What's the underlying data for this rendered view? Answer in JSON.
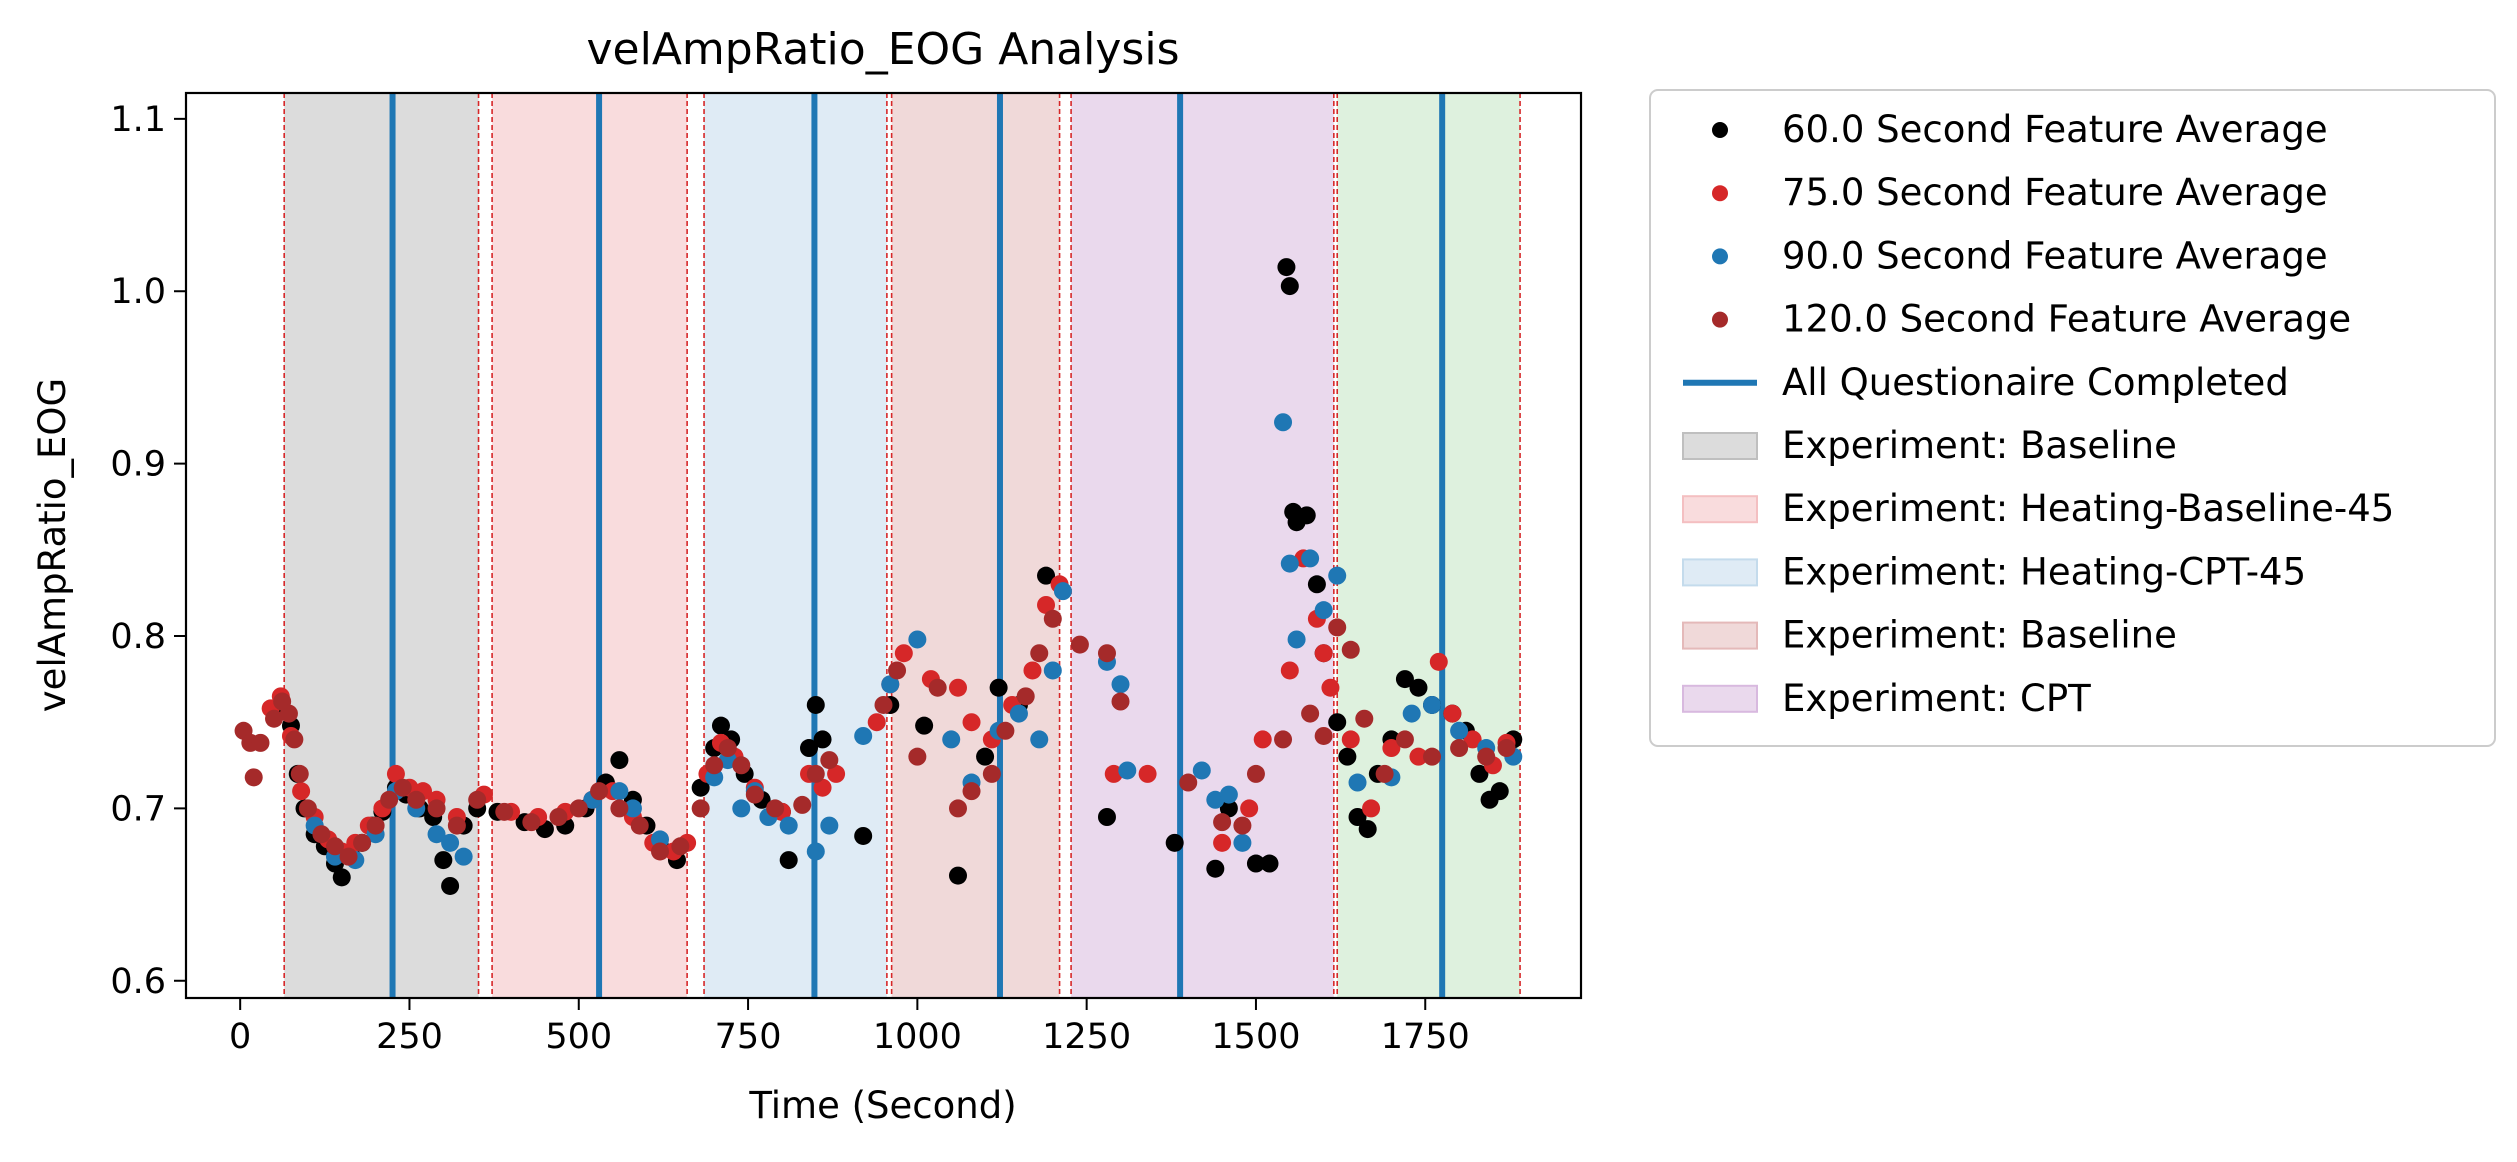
{
  "chart_data": {
    "type": "scatter",
    "title": "velAmpRatio_EOG Analysis",
    "xlabel": "Time (Second)",
    "ylabel": "velAmpRatio_EOG",
    "xlim": [
      -80,
      1980
    ],
    "ylim": [
      0.59,
      1.115
    ],
    "x_ticks": [
      0,
      250,
      500,
      750,
      1000,
      1250,
      1500,
      1750
    ],
    "y_ticks": [
      0.6,
      0.7,
      0.8,
      0.9,
      1.0,
      1.1
    ],
    "x_tick_labels": [
      "0",
      "250",
      "500",
      "750",
      "1000",
      "1250",
      "1500",
      "1750"
    ],
    "y_tick_labels": [
      "0.6",
      "0.7",
      "0.8",
      "0.9",
      "1.0",
      "1.1"
    ],
    "grid": false,
    "legend_position": "outside-right",
    "series": [
      {
        "name": "60.0 Second Feature Average",
        "color": "#000000",
        "points": [
          [
            62,
            0.758
          ],
          [
            75,
            0.748
          ],
          [
            85,
            0.72
          ],
          [
            95,
            0.7
          ],
          [
            110,
            0.685
          ],
          [
            125,
            0.678
          ],
          [
            140,
            0.668
          ],
          [
            150,
            0.66
          ],
          [
            165,
            0.672
          ],
          [
            180,
            0.68
          ],
          [
            195,
            0.69
          ],
          [
            210,
            0.698
          ],
          [
            230,
            0.712
          ],
          [
            245,
            0.708
          ],
          [
            265,
            0.7
          ],
          [
            285,
            0.695
          ],
          [
            300,
            0.67
          ],
          [
            310,
            0.655
          ],
          [
            330,
            0.69
          ],
          [
            350,
            0.7
          ],
          [
            380,
            0.698
          ],
          [
            420,
            0.692
          ],
          [
            450,
            0.688
          ],
          [
            480,
            0.69
          ],
          [
            510,
            0.7
          ],
          [
            540,
            0.715
          ],
          [
            560,
            0.728
          ],
          [
            580,
            0.705
          ],
          [
            600,
            0.69
          ],
          [
            620,
            0.678
          ],
          [
            645,
            0.67
          ],
          [
            680,
            0.712
          ],
          [
            700,
            0.735
          ],
          [
            710,
            0.748
          ],
          [
            725,
            0.74
          ],
          [
            745,
            0.72
          ],
          [
            770,
            0.705
          ],
          [
            800,
            0.698
          ],
          [
            810,
            0.67
          ],
          [
            840,
            0.735
          ],
          [
            850,
            0.76
          ],
          [
            860,
            0.74
          ],
          [
            920,
            0.684
          ],
          [
            960,
            0.76
          ],
          [
            1010,
            0.748
          ],
          [
            1060,
            0.661
          ],
          [
            1100,
            0.73
          ],
          [
            1120,
            0.77
          ],
          [
            1150,
            0.76
          ],
          [
            1190,
            0.835
          ],
          [
            1280,
            0.695
          ],
          [
            1380,
            0.68
          ],
          [
            1440,
            0.665
          ],
          [
            1460,
            0.7
          ],
          [
            1500,
            0.668
          ],
          [
            1520,
            0.668
          ],
          [
            1545,
            1.014
          ],
          [
            1550,
            1.003
          ],
          [
            1555,
            0.872
          ],
          [
            1560,
            0.866
          ],
          [
            1575,
            0.87
          ],
          [
            1590,
            0.83
          ],
          [
            1600,
            0.79
          ],
          [
            1620,
            0.75
          ],
          [
            1635,
            0.73
          ],
          [
            1650,
            0.695
          ],
          [
            1665,
            0.688
          ],
          [
            1680,
            0.72
          ],
          [
            1700,
            0.74
          ],
          [
            1720,
            0.775
          ],
          [
            1740,
            0.77
          ],
          [
            1760,
            0.76
          ],
          [
            1790,
            0.755
          ],
          [
            1810,
            0.745
          ],
          [
            1830,
            0.72
          ],
          [
            1845,
            0.705
          ],
          [
            1860,
            0.71
          ],
          [
            1880,
            0.74
          ]
        ]
      },
      {
        "name": "75.0 Second Feature Average",
        "color": "#d62728",
        "points": [
          [
            45,
            0.758
          ],
          [
            60,
            0.765
          ],
          [
            75,
            0.742
          ],
          [
            90,
            0.71
          ],
          [
            110,
            0.695
          ],
          [
            130,
            0.682
          ],
          [
            150,
            0.675
          ],
          [
            170,
            0.68
          ],
          [
            190,
            0.69
          ],
          [
            210,
            0.7
          ],
          [
            230,
            0.72
          ],
          [
            250,
            0.712
          ],
          [
            270,
            0.71
          ],
          [
            290,
            0.705
          ],
          [
            320,
            0.695
          ],
          [
            360,
            0.708
          ],
          [
            400,
            0.698
          ],
          [
            440,
            0.695
          ],
          [
            480,
            0.698
          ],
          [
            520,
            0.705
          ],
          [
            550,
            0.71
          ],
          [
            580,
            0.695
          ],
          [
            610,
            0.68
          ],
          [
            640,
            0.675
          ],
          [
            660,
            0.68
          ],
          [
            690,
            0.72
          ],
          [
            710,
            0.738
          ],
          [
            730,
            0.73
          ],
          [
            760,
            0.712
          ],
          [
            800,
            0.698
          ],
          [
            840,
            0.72
          ],
          [
            860,
            0.712
          ],
          [
            880,
            0.72
          ],
          [
            940,
            0.75
          ],
          [
            960,
            0.772
          ],
          [
            980,
            0.79
          ],
          [
            1020,
            0.775
          ],
          [
            1060,
            0.77
          ],
          [
            1080,
            0.75
          ],
          [
            1110,
            0.74
          ],
          [
            1140,
            0.76
          ],
          [
            1170,
            0.78
          ],
          [
            1190,
            0.818
          ],
          [
            1210,
            0.83
          ],
          [
            1290,
            0.72
          ],
          [
            1340,
            0.72
          ],
          [
            1450,
            0.68
          ],
          [
            1490,
            0.7
          ],
          [
            1510,
            0.74
          ],
          [
            1550,
            0.78
          ],
          [
            1570,
            0.845
          ],
          [
            1590,
            0.81
          ],
          [
            1600,
            0.79
          ],
          [
            1610,
            0.77
          ],
          [
            1640,
            0.74
          ],
          [
            1670,
            0.7
          ],
          [
            1700,
            0.735
          ],
          [
            1740,
            0.73
          ],
          [
            1770,
            0.785
          ],
          [
            1790,
            0.755
          ],
          [
            1820,
            0.74
          ],
          [
            1850,
            0.725
          ],
          [
            1870,
            0.738
          ]
        ]
      },
      {
        "name": "90.0 Second Feature Average",
        "color": "#1f77b4",
        "points": [
          [
            110,
            0.69
          ],
          [
            140,
            0.672
          ],
          [
            170,
            0.67
          ],
          [
            200,
            0.685
          ],
          [
            230,
            0.71
          ],
          [
            260,
            0.7
          ],
          [
            290,
            0.685
          ],
          [
            310,
            0.68
          ],
          [
            330,
            0.672
          ],
          [
            520,
            0.705
          ],
          [
            560,
            0.71
          ],
          [
            580,
            0.7
          ],
          [
            620,
            0.682
          ],
          [
            700,
            0.718
          ],
          [
            720,
            0.728
          ],
          [
            740,
            0.7
          ],
          [
            760,
            0.71
          ],
          [
            780,
            0.695
          ],
          [
            810,
            0.69
          ],
          [
            850,
            0.675
          ],
          [
            870,
            0.69
          ],
          [
            920,
            0.742
          ],
          [
            960,
            0.772
          ],
          [
            1000,
            0.798
          ],
          [
            1050,
            0.74
          ],
          [
            1080,
            0.715
          ],
          [
            1120,
            0.745
          ],
          [
            1150,
            0.755
          ],
          [
            1180,
            0.74
          ],
          [
            1200,
            0.78
          ],
          [
            1215,
            0.826
          ],
          [
            1280,
            0.785
          ],
          [
            1300,
            0.772
          ],
          [
            1310,
            0.722
          ],
          [
            1420,
            0.722
          ],
          [
            1440,
            0.705
          ],
          [
            1460,
            0.708
          ],
          [
            1480,
            0.68
          ],
          [
            1540,
            0.924
          ],
          [
            1550,
            0.842
          ],
          [
            1560,
            0.798
          ],
          [
            1580,
            0.845
          ],
          [
            1600,
            0.815
          ],
          [
            1620,
            0.835
          ],
          [
            1650,
            0.715
          ],
          [
            1700,
            0.718
          ],
          [
            1730,
            0.755
          ],
          [
            1760,
            0.76
          ],
          [
            1800,
            0.745
          ],
          [
            1840,
            0.735
          ],
          [
            1880,
            0.73
          ]
        ]
      },
      {
        "name": "120.0 Second Feature Average",
        "color": "#a52a2a",
        "points": [
          [
            5,
            0.745
          ],
          [
            15,
            0.738
          ],
          [
            20,
            0.718
          ],
          [
            30,
            0.738
          ],
          [
            50,
            0.752
          ],
          [
            62,
            0.762
          ],
          [
            72,
            0.755
          ],
          [
            80,
            0.74
          ],
          [
            88,
            0.72
          ],
          [
            100,
            0.7
          ],
          [
            120,
            0.685
          ],
          [
            140,
            0.678
          ],
          [
            160,
            0.672
          ],
          [
            180,
            0.68
          ],
          [
            200,
            0.69
          ],
          [
            220,
            0.705
          ],
          [
            240,
            0.712
          ],
          [
            260,
            0.705
          ],
          [
            290,
            0.7
          ],
          [
            320,
            0.69
          ],
          [
            350,
            0.705
          ],
          [
            390,
            0.698
          ],
          [
            430,
            0.692
          ],
          [
            470,
            0.695
          ],
          [
            500,
            0.7
          ],
          [
            530,
            0.71
          ],
          [
            560,
            0.7
          ],
          [
            590,
            0.69
          ],
          [
            620,
            0.675
          ],
          [
            650,
            0.678
          ],
          [
            680,
            0.7
          ],
          [
            700,
            0.725
          ],
          [
            720,
            0.735
          ],
          [
            740,
            0.725
          ],
          [
            760,
            0.708
          ],
          [
            790,
            0.7
          ],
          [
            830,
            0.702
          ],
          [
            850,
            0.72
          ],
          [
            870,
            0.728
          ],
          [
            950,
            0.76
          ],
          [
            970,
            0.78
          ],
          [
            1000,
            0.73
          ],
          [
            1030,
            0.77
          ],
          [
            1060,
            0.7
          ],
          [
            1080,
            0.71
          ],
          [
            1110,
            0.72
          ],
          [
            1130,
            0.745
          ],
          [
            1160,
            0.765
          ],
          [
            1180,
            0.79
          ],
          [
            1200,
            0.81
          ],
          [
            1240,
            0.795
          ],
          [
            1280,
            0.79
          ],
          [
            1300,
            0.762
          ],
          [
            1400,
            0.715
          ],
          [
            1450,
            0.692
          ],
          [
            1480,
            0.69
          ],
          [
            1500,
            0.72
          ],
          [
            1540,
            0.74
          ],
          [
            1580,
            0.755
          ],
          [
            1600,
            0.742
          ],
          [
            1620,
            0.805
          ],
          [
            1640,
            0.792
          ],
          [
            1660,
            0.752
          ],
          [
            1690,
            0.72
          ],
          [
            1720,
            0.74
          ],
          [
            1760,
            0.73
          ],
          [
            1800,
            0.735
          ],
          [
            1840,
            0.73
          ],
          [
            1870,
            0.735
          ]
        ]
      }
    ],
    "questionnaire_lines": {
      "name": "All Questionaire Completed",
      "color": "#1f77b4",
      "x": [
        225,
        530,
        848,
        1122,
        1388,
        1775
      ]
    },
    "experiment_regions": [
      {
        "name": "Experiment: Baseline",
        "color": "#bfbfbf",
        "start": 65,
        "end": 352
      },
      {
        "name": "Experiment: Heating-Baseline-45",
        "color": "#f4bfc1",
        "start": 372,
        "end": 660
      },
      {
        "name": "Experiment: Heating-CPT-45",
        "color": "#c4dbec",
        "start": 685,
        "end": 955
      },
      {
        "name": "Experiment: Baseline",
        "color": "#e4b9b9",
        "start": 962,
        "end": 1210
      },
      {
        "name": "Experiment: CPT",
        "color": "#d8b9df",
        "start": 1227,
        "end": 1615
      },
      {
        "name": "",
        "color": "#c3e6c3",
        "start": 1620,
        "end": 1890
      }
    ],
    "region_boundary_color": "#d62728"
  }
}
